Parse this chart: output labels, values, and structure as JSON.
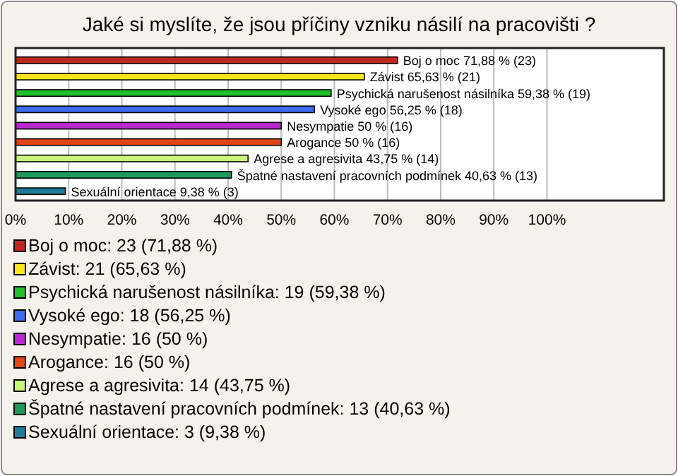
{
  "chart_data": {
    "type": "bar",
    "orientation": "horizontal",
    "title": "Jaké si myslíte, že jsou příčiny vzniku násilí na pracovišti ?",
    "categories": [
      null,
      null,
      null,
      null,
      null,
      null,
      null,
      null,
      null
    ],
    "series": [
      {
        "name": "Boj o moc: 23 (71,88 %)",
        "color": "#c0281e",
        "values": [
          71.88,
          null,
          null,
          null,
          null,
          null,
          null,
          null,
          null
        ],
        "value_labels": [
          "Boj o moc 71,88 % (23)",
          null,
          null,
          null,
          null,
          null,
          null,
          null,
          null
        ]
      },
      {
        "name": "Závist: 21 (65,63 %)",
        "color": "#f6e51a",
        "values": [
          null,
          65.63,
          null,
          null,
          null,
          null,
          null,
          null,
          null
        ],
        "value_labels": [
          null,
          "Závist 65,63 % (21)",
          null,
          null,
          null,
          null,
          null,
          null,
          null
        ]
      },
      {
        "name": "Psychická narušenost násilníka: 19 (59,38 %)",
        "color": "#22c02a",
        "values": [
          null,
          null,
          59.38,
          null,
          null,
          null,
          null,
          null,
          null
        ],
        "value_labels": [
          null,
          null,
          "Psychická narušenost násilníka 59,38 % (19)",
          null,
          null,
          null,
          null,
          null,
          null
        ]
      },
      {
        "name": "Vysoké ego: 18 (56,25 %)",
        "color": "#3d6cf0",
        "values": [
          null,
          null,
          null,
          56.25,
          null,
          null,
          null,
          null,
          null
        ],
        "value_labels": [
          null,
          null,
          null,
          "Vysoké ego 56,25 % (18)",
          null,
          null,
          null,
          null,
          null
        ]
      },
      {
        "name": "Nesympatie: 16 (50 %)",
        "color": "#b82ad0",
        "values": [
          null,
          null,
          null,
          null,
          50,
          null,
          null,
          null,
          null
        ],
        "value_labels": [
          null,
          null,
          null,
          null,
          "Nesympatie 50 % (16)",
          null,
          null,
          null,
          null
        ]
      },
      {
        "name": "Arogance: 16 (50 %)",
        "color": "#e0461a",
        "values": [
          null,
          null,
          null,
          null,
          null,
          50,
          null,
          null,
          null
        ],
        "value_labels": [
          null,
          null,
          null,
          null,
          null,
          "Arogance 50 % (16)",
          null,
          null,
          null
        ]
      },
      {
        "name": "Agrese a agresivita: 14 (43,75 %)",
        "color": "#c8f57a",
        "values": [
          null,
          null,
          null,
          null,
          null,
          null,
          43.75,
          null,
          null
        ],
        "value_labels": [
          null,
          null,
          null,
          null,
          null,
          null,
          "Agrese a agresivita 43,75 % (14)",
          null,
          null
        ]
      },
      {
        "name": "Špatné nastavení pracovních podmínek: 13 (40,63 %)",
        "color": "#1d9a5a",
        "values": [
          null,
          null,
          null,
          null,
          null,
          null,
          null,
          40.63,
          null
        ],
        "value_labels": [
          null,
          null,
          null,
          null,
          null,
          null,
          null,
          "Špatné nastavení pracovních podmínek 40,63 % (13)",
          null
        ]
      },
      {
        "name": "Sexuální orientace: 3 (9,38 %)",
        "color": "#1f7a96",
        "values": [
          null,
          null,
          null,
          null,
          null,
          null,
          null,
          null,
          9.38
        ],
        "value_labels": [
          null,
          null,
          null,
          null,
          null,
          null,
          null,
          null,
          "Sexuální orientace 9,38 % (3)"
        ]
      }
    ],
    "xlim": [
      0,
      122
    ],
    "xticks": [
      {
        "value": 0,
        "label": "0%"
      },
      {
        "value": 10,
        "label": "10%"
      },
      {
        "value": 20,
        "label": "20%"
      },
      {
        "value": 30,
        "label": "30%"
      },
      {
        "value": 40,
        "label": "40%"
      },
      {
        "value": 50,
        "label": "50%"
      },
      {
        "value": 60,
        "label": "60%"
      },
      {
        "value": 70,
        "label": "70%"
      },
      {
        "value": 80,
        "label": "80%"
      },
      {
        "value": 90,
        "label": "90%"
      },
      {
        "value": 100,
        "label": "100%"
      }
    ],
    "grid": "x",
    "legend": "bottom"
  }
}
